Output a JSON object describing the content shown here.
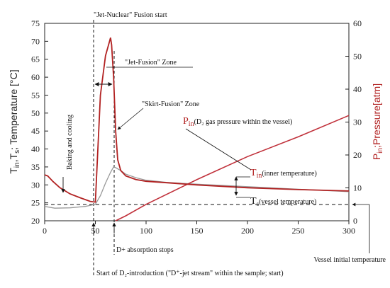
{
  "chart_data": {
    "type": "line",
    "x_range": [
      0,
      300
    ],
    "y_left_range": [
      20,
      75
    ],
    "y_right_range": [
      0,
      60
    ],
    "x_ticks": [
      "0",
      "50",
      "100",
      "150",
      "200",
      "250",
      "300"
    ],
    "y_left_ticks": [
      "20",
      "25",
      "30",
      "35",
      "40",
      "45",
      "50",
      "55",
      "60",
      "65",
      "70",
      "75"
    ],
    "y_right_ticks": [
      "0",
      "10",
      "20",
      "30",
      "40",
      "50",
      "60"
    ],
    "ylabel_left": "Tin,Ts; Temperature [°C]",
    "ylabel_left_parts": {
      "t1": "T",
      "s1": "in",
      "mid": ",T",
      "s2": "s",
      "rest": "; Temperature [°C]"
    },
    "ylabel_right": "Pin;Pressure[atm]",
    "ylabel_right_parts": {
      "p": "P",
      "sub": "in",
      "rest": ";Pressure[atm]"
    },
    "grid": false,
    "colors": {
      "tin": "#b22222",
      "ts": "#999999",
      "pressure": "#c0303a",
      "axis": "#222222"
    },
    "series": [
      {
        "name": "Tin (inner temperature)",
        "axis": "left",
        "x": [
          0,
          3,
          8,
          15,
          25,
          35,
          45,
          50,
          55,
          60,
          63,
          65,
          66,
          68,
          70,
          72,
          75,
          80,
          90,
          100,
          120,
          150,
          200,
          250,
          300
        ],
        "y": [
          32.8,
          32.5,
          31,
          29.2,
          27.5,
          26.4,
          25.4,
          25.2,
          55,
          66,
          69,
          71,
          69,
          60,
          45,
          37,
          34,
          32.5,
          31.5,
          31,
          30.6,
          30,
          29.2,
          28.7,
          28.3
        ]
      },
      {
        "name": "Ts (vessel temperature)",
        "axis": "left",
        "x": [
          0,
          10,
          25,
          40,
          50,
          55,
          60,
          65,
          68,
          70,
          75,
          80,
          90,
          100,
          120,
          150,
          200,
          250,
          300
        ],
        "y": [
          24,
          23.5,
          23.6,
          24,
          24.6,
          27,
          30.5,
          33.5,
          35,
          34.8,
          34,
          33,
          32,
          31.3,
          30.7,
          30.2,
          29.5,
          28.8,
          28.1
        ]
      },
      {
        "name": "Pin (D2 gas pressure within the vessel)",
        "axis": "right",
        "x": [
          70,
          80,
          100,
          150,
          200,
          250,
          300
        ],
        "y": [
          0,
          1.5,
          5,
          12.5,
          19.5,
          25.5,
          32
        ]
      }
    ],
    "annotations": {
      "jet_nuclear": "\"Jet-Nuclear\" Fusion start",
      "jet_fusion_zone": "\"Jet-Fusion\" Zone",
      "skirt_fusion_zone": "\"Skirt-Fusion\" Zone",
      "baking": "Baking and cooling",
      "p_main": "P",
      "p_sub": "in",
      "p_desc": "(D₂ gas pressure within the vessel)",
      "tin_main": "T",
      "tin_sub": "in",
      "tin_desc": "(inner temperature)",
      "ts_main": "T",
      "ts_sub": "s",
      "ts_desc": "(vessel temperature)",
      "d_absorption": "D+ absorption stops",
      "vessel_initial": "Vessel initial temperature",
      "start_intro": "Start of D₂-introduction (\"D⁺-jet stream\" within the sample; start)"
    }
  }
}
